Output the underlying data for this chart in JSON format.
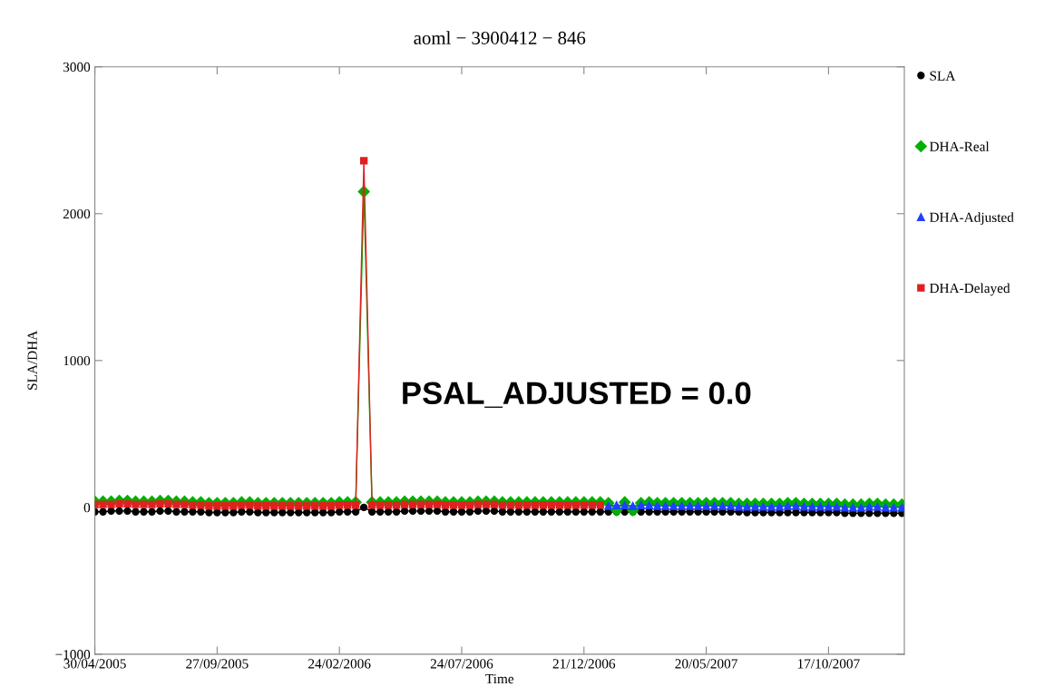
{
  "chart_data": {
    "type": "line",
    "title": "aoml − 3900412 − 846",
    "xlabel": "Time",
    "ylabel": "SLA/DHA",
    "x": [
      "2005-04-30",
      "2005-05-10",
      "2005-05-20",
      "2005-05-30",
      "2005-06-09",
      "2005-06-19",
      "2005-06-29",
      "2005-07-09",
      "2005-07-19",
      "2005-07-29",
      "2005-08-08",
      "2005-08-18",
      "2005-08-28",
      "2005-09-07",
      "2005-09-17",
      "2005-09-27",
      "2005-10-07",
      "2005-10-17",
      "2005-10-27",
      "2005-11-06",
      "2005-11-16",
      "2005-11-26",
      "2005-12-06",
      "2005-12-16",
      "2005-12-26",
      "2006-01-05",
      "2006-01-15",
      "2006-01-25",
      "2006-02-04",
      "2006-02-14",
      "2006-02-24",
      "2006-03-06",
      "2006-03-16",
      "2006-03-26",
      "2006-04-05",
      "2006-04-15",
      "2006-04-25",
      "2006-05-05",
      "2006-05-15",
      "2006-05-25",
      "2006-06-04",
      "2006-06-14",
      "2006-06-24",
      "2006-07-04",
      "2006-07-14",
      "2006-07-24",
      "2006-08-03",
      "2006-08-13",
      "2006-08-23",
      "2006-09-02",
      "2006-09-12",
      "2006-09-22",
      "2006-10-02",
      "2006-10-12",
      "2006-10-22",
      "2006-11-01",
      "2006-11-11",
      "2006-11-21",
      "2006-12-01",
      "2006-12-11",
      "2006-12-21",
      "2006-12-31",
      "2007-01-10",
      "2007-01-20",
      "2007-01-30",
      "2007-02-09",
      "2007-02-19",
      "2007-03-01",
      "2007-03-11",
      "2007-03-21",
      "2007-03-31",
      "2007-04-10",
      "2007-04-20",
      "2007-04-30",
      "2007-05-10",
      "2007-05-20",
      "2007-05-30",
      "2007-06-09",
      "2007-06-19",
      "2007-06-29",
      "2007-07-09",
      "2007-07-19",
      "2007-07-29",
      "2007-08-08",
      "2007-08-18",
      "2007-08-28",
      "2007-09-07",
      "2007-09-17",
      "2007-09-27",
      "2007-10-07",
      "2007-10-17",
      "2007-10-27",
      "2007-11-06",
      "2007-11-16",
      "2007-11-26",
      "2007-12-06",
      "2007-12-16",
      "2007-12-26",
      "2008-01-05",
      "2008-01-15"
    ],
    "series": [
      {
        "name": "SLA",
        "color": "#000000",
        "marker": "circle",
        "values": [
          -30,
          -30,
          -25,
          -25,
          -25,
          -30,
          -30,
          -30,
          -25,
          -25,
          -30,
          -30,
          -30,
          -30,
          -35,
          -35,
          -35,
          -35,
          -30,
          -30,
          -35,
          -35,
          -35,
          -35,
          -35,
          -35,
          -35,
          -35,
          -35,
          -35,
          -30,
          -30,
          -30,
          0,
          -30,
          -30,
          -30,
          -30,
          -25,
          -25,
          -25,
          -25,
          -25,
          -30,
          -30,
          -30,
          -30,
          -25,
          -25,
          -25,
          -30,
          -30,
          -30,
          -30,
          -30,
          -30,
          -30,
          -30,
          -30,
          -30,
          -30,
          -30,
          -30,
          -30,
          -30,
          -30,
          -30,
          -30,
          -30,
          -30,
          -30,
          -30,
          -30,
          -30,
          -30,
          -30,
          -30,
          -30,
          -30,
          -30,
          -35,
          -35,
          -35,
          -35,
          -35,
          -35,
          -35,
          -35,
          -35,
          -35,
          -35,
          -35,
          -40,
          -40,
          -40,
          -40,
          -40,
          -40,
          -40,
          -40
        ]
      },
      {
        "name": "DHA-Real",
        "color": "#00b000",
        "marker": "diamond",
        "values": [
          40,
          40,
          40,
          45,
          45,
          40,
          40,
          40,
          45,
          45,
          40,
          40,
          35,
          35,
          30,
          30,
          30,
          30,
          35,
          35,
          30,
          30,
          30,
          30,
          30,
          30,
          30,
          30,
          30,
          30,
          35,
          35,
          35,
          2150,
          35,
          35,
          35,
          35,
          40,
          40,
          40,
          40,
          40,
          35,
          35,
          35,
          35,
          40,
          40,
          40,
          35,
          35,
          35,
          35,
          35,
          35,
          35,
          35,
          35,
          35,
          35,
          35,
          35,
          30,
          -20,
          35,
          -20,
          30,
          35,
          30,
          30,
          30,
          30,
          30,
          30,
          30,
          30,
          30,
          30,
          25,
          25,
          25,
          25,
          25,
          25,
          30,
          30,
          25,
          25,
          25,
          25,
          25,
          20,
          20,
          20,
          25,
          25,
          20,
          20,
          20
        ]
      },
      {
        "name": "DHA-Adjusted",
        "color": "#2040ff",
        "marker": "triangle",
        "values": [
          null,
          null,
          null,
          null,
          null,
          null,
          null,
          null,
          null,
          null,
          null,
          null,
          null,
          null,
          null,
          null,
          null,
          null,
          null,
          null,
          null,
          null,
          null,
          null,
          null,
          null,
          null,
          null,
          null,
          null,
          null,
          null,
          null,
          null,
          null,
          null,
          null,
          null,
          null,
          null,
          null,
          null,
          null,
          null,
          null,
          null,
          null,
          null,
          null,
          null,
          null,
          null,
          null,
          null,
          null,
          null,
          null,
          null,
          null,
          null,
          null,
          null,
          null,
          10,
          15,
          15,
          10,
          15,
          15,
          10,
          10,
          10,
          10,
          10,
          10,
          10,
          10,
          10,
          10,
          5,
          5,
          5,
          5,
          5,
          5,
          10,
          10,
          5,
          5,
          5,
          5,
          5,
          0,
          0,
          0,
          5,
          5,
          0,
          0,
          0
        ]
      },
      {
        "name": "DHA-Delayed",
        "color": "#e02020",
        "marker": "square",
        "values": [
          20,
          20,
          20,
          25,
          25,
          20,
          20,
          20,
          25,
          25,
          20,
          20,
          15,
          15,
          10,
          10,
          10,
          10,
          15,
          15,
          10,
          10,
          10,
          10,
          10,
          10,
          10,
          10,
          10,
          10,
          15,
          15,
          15,
          2360,
          15,
          15,
          15,
          15,
          20,
          20,
          20,
          20,
          20,
          15,
          15,
          15,
          15,
          20,
          20,
          20,
          15,
          15,
          15,
          15,
          15,
          15,
          15,
          15,
          15,
          15,
          15,
          15,
          15,
          null,
          null,
          null,
          null,
          null,
          null,
          null,
          null,
          null,
          null,
          null,
          null,
          null,
          null,
          null,
          null,
          null,
          null,
          null,
          null,
          null,
          null,
          null,
          null,
          null,
          null,
          null,
          null,
          null,
          null,
          null,
          null,
          null,
          null,
          null,
          null,
          null
        ]
      }
    ],
    "xlim": [
      "2005-04-30",
      "2008-01-18"
    ],
    "xticks": [
      {
        "value": "2005-04-30",
        "label": "30/04/2005"
      },
      {
        "value": "2005-09-27",
        "label": "27/09/2005"
      },
      {
        "value": "2006-02-24",
        "label": "24/02/2006"
      },
      {
        "value": "2006-07-24",
        "label": "24/07/2006"
      },
      {
        "value": "2006-12-21",
        "label": "21/12/2006"
      },
      {
        "value": "2007-05-20",
        "label": "20/05/2007"
      },
      {
        "value": "2007-10-17",
        "label": "17/10/2007"
      }
    ],
    "ylim": [
      -1000,
      3000
    ],
    "yticks": [
      {
        "value": -1000,
        "label": "−1000"
      },
      0,
      1000,
      2000,
      3000
    ],
    "annotations": [
      "PSAL_ADJUSTED = 0.0"
    ],
    "legend": "right",
    "grid": false,
    "line_style": "solid"
  }
}
